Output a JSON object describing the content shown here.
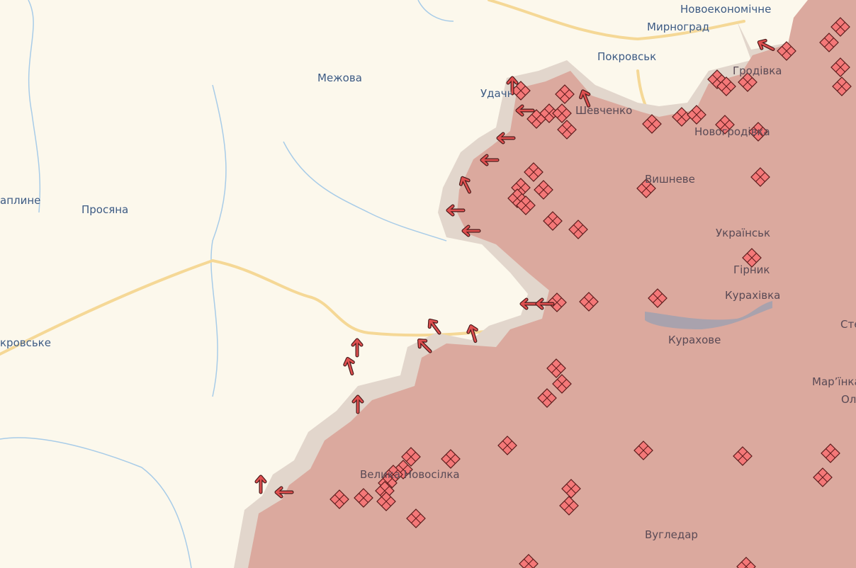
{
  "map": {
    "colors": {
      "background": "#fcf8ec",
      "occupied_area": "#dba99e",
      "contested_area": "#e2d6cc",
      "road": "#f5d896",
      "water": "#a8cce8",
      "marker_fill": "#f47878",
      "marker_stroke": "#5a1a1a",
      "arrow": "#e05050"
    },
    "icons": {
      "marker": "crossed-diamond-icon",
      "advance": "arrow-icon"
    },
    "labels": [
      "Новоекономічне",
      "Мирноград",
      "Покровськ",
      "Межова",
      "Удачне",
      "Шевченко",
      "Гродівка",
      "Новогродівка",
      "Вишневе",
      "Українськ",
      "Гірник",
      "Курахівка",
      "Курахове",
      "Мар’їнка",
      "Ол",
      "Сте",
      "Велика Новосілка",
      "Вугледар",
      "Просяна",
      "аплине",
      "кровське"
    ]
  }
}
